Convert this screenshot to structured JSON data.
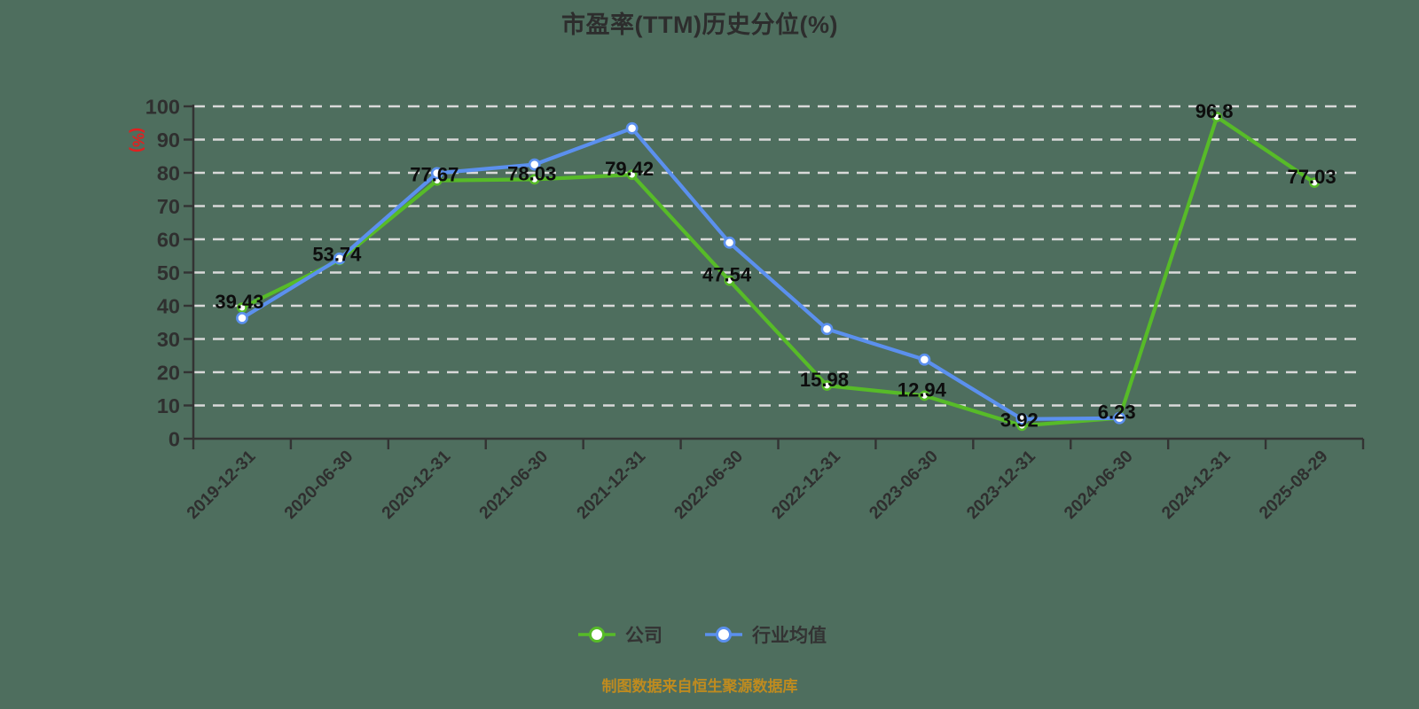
{
  "title": "市盈率(TTM)历史分位(%)",
  "footer": "制图数据来自恒生聚源数据库",
  "legend": [
    {
      "label": "公司",
      "color": "#57bb28"
    },
    {
      "label": "行业均值",
      "color": "#5b90ee"
    }
  ],
  "colors": {
    "background": "#4e6e5e",
    "axis": "#333333",
    "grid": "#d9d9d9",
    "tick_label": "#2f2f2f",
    "title": "#2d2d2d",
    "data_label": "#0d0d0d",
    "y_unit_label": "#e02020",
    "footer": "#bf8b1f",
    "legend_text": "#333333",
    "company_series": "#57bb28",
    "industry_series": "#5b90ee"
  },
  "chart_data": {
    "type": "line",
    "title": "市盈率(TTM)历史分位(%)",
    "xlabel": "",
    "ylabel": "(%)",
    "ylim": [
      0,
      100
    ],
    "yticks": [
      0,
      10,
      20,
      30,
      40,
      50,
      60,
      70,
      80,
      90,
      100
    ],
    "grid": true,
    "grid_style": "dashed",
    "legend_position": "bottom",
    "categories": [
      "2019-12-31",
      "2020-06-30",
      "2020-12-31",
      "2021-06-30",
      "2021-12-31",
      "2022-06-30",
      "2022-12-31",
      "2023-06-30",
      "2023-12-31",
      "2024-06-30",
      "2024-12-31",
      "2025-08-29"
    ],
    "series": [
      {
        "name": "公司",
        "color": "#57bb28",
        "values": [
          39.43,
          53.74,
          77.67,
          78.03,
          79.42,
          47.54,
          15.98,
          12.94,
          3.92,
          6.23,
          96.8,
          77.03
        ],
        "point_labels": [
          "39.43",
          "53.74",
          "77.67",
          "78.03",
          "79.42",
          "47.54",
          "15.98",
          "12.94",
          "3.92",
          "6.23",
          "96.8",
          "77.03"
        ]
      },
      {
        "name": "行业均值",
        "color": "#5b90ee",
        "values": [
          36.3,
          54.2,
          79.9,
          82.5,
          93.4,
          59.0,
          33.0,
          23.8,
          5.9,
          6.2,
          null,
          null
        ],
        "point_labels": []
      }
    ]
  }
}
